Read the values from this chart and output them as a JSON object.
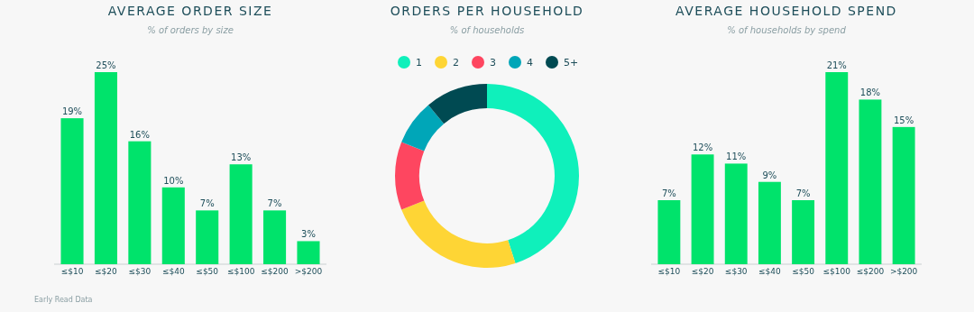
{
  "chart_data": [
    {
      "type": "bar",
      "title": "AVERAGE ORDER SIZE",
      "subtitle": "% of orders by size",
      "categories": [
        "≤$10",
        "≤$20",
        "≤$30",
        "≤$40",
        "≤$50",
        "≤$100",
        "≤$200",
        ">$200"
      ],
      "values": [
        19,
        25,
        16,
        10,
        7,
        13,
        7,
        3
      ],
      "value_labels": [
        "19%",
        "25%",
        "16%",
        "10%",
        "7%",
        "13%",
        "7%",
        "3%"
      ],
      "color": "#00e36b",
      "ylim": [
        0,
        25
      ],
      "tick_labels": "x",
      "annotations": [
        "Early Read Data"
      ]
    },
    {
      "type": "donut",
      "title": "ORDERS PER HOUSEHOLD",
      "subtitle": "% of households",
      "categories": [
        "1",
        "2",
        "3",
        "4",
        "5+"
      ],
      "values": [
        45,
        24,
        12,
        8,
        11
      ],
      "colors": [
        "#0ff0bb",
        "#fed535",
        "#fe4660",
        "#00a6b8",
        "#004a52"
      ],
      "legend": "top"
    },
    {
      "type": "bar",
      "title": "AVERAGE HOUSEHOLD SPEND",
      "subtitle": "% of households by spend",
      "categories": [
        "≤$10",
        "≤$20",
        "≤$30",
        "≤$40",
        "≤$50",
        "≤$100",
        "≤$200",
        ">$200"
      ],
      "values": [
        7,
        12,
        11,
        9,
        7,
        21,
        18,
        15
      ],
      "value_labels": [
        "7%",
        "12%",
        "11%",
        "9%",
        "7%",
        "21%",
        "18%",
        "15%"
      ],
      "color": "#00e36b",
      "ylim": [
        0,
        21
      ],
      "tick_labels": "x"
    }
  ]
}
